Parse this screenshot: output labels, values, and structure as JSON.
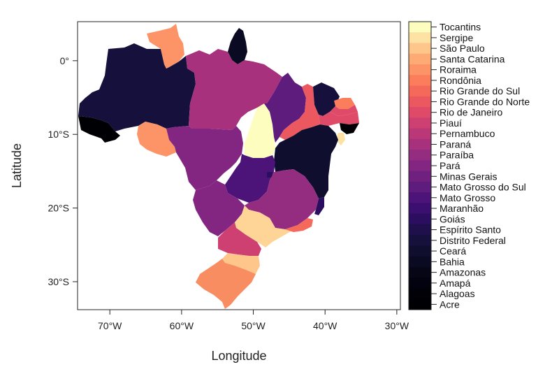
{
  "chart_data": {
    "type": "choropleth",
    "xlabel": "Longitude",
    "ylabel": "Latitude",
    "x_ticks": [
      "70°W",
      "60°W",
      "50°W",
      "40°W",
      "30°W"
    ],
    "x_tick_values": [
      -70,
      -60,
      -50,
      -40,
      -30
    ],
    "y_ticks": [
      "0°",
      "10°S",
      "20°S",
      "30°S"
    ],
    "y_tick_values": [
      0,
      -10,
      -20,
      -30
    ],
    "xlim": [
      -74.5,
      -29.5
    ],
    "ylim": [
      -33.8,
      5.3
    ],
    "legend": {
      "placement": "right",
      "palette": "magma",
      "entries": [
        "Tocantins",
        "Sergipe",
        "São Paulo",
        "Santa Catarina",
        "Roraima",
        "Rondônia",
        "Rio Grande do Sul",
        "Rio Grande do Norte",
        "Rio de Janeiro",
        "Piauí",
        "Pernambuco",
        "Paraná",
        "Paraíba",
        "Pará",
        "Minas Gerais",
        "Mato Grosso do Sul",
        "Mato Grosso",
        "Maranhão",
        "Goiás",
        "Espírito Santo",
        "Distrito Federal",
        "Ceará",
        "Bahia",
        "Amazonas",
        "Amapá",
        "Alagoas",
        "Acre"
      ],
      "colors": [
        "#fcfdbf",
        "#fde2a3",
        "#fec68a",
        "#feaa74",
        "#fd9467",
        "#fb7d5b",
        "#f5695b",
        "#ec5860",
        "#df4a68",
        "#cd4071",
        "#ba3878",
        "#a7317d",
        "#942c80",
        "#822681",
        "#70207f",
        "#5e1c7d",
        "#4c1379",
        "#3a0f6f",
        "#2b0e5f",
        "#1f104c",
        "#15103c",
        "#0f0e2e",
        "#0a0a22",
        "#060617",
        "#03030f",
        "#010107",
        "#000004"
      ]
    },
    "states": [
      {
        "name": "Acre",
        "color": "#000004"
      },
      {
        "name": "Amazonas",
        "color": "#15103c"
      },
      {
        "name": "Roraima",
        "color": "#fd9467"
      },
      {
        "name": "Amapá",
        "color": "#0a0a22"
      },
      {
        "name": "Pará",
        "color": "#a7317d"
      },
      {
        "name": "Rondônia",
        "color": "#fd9467"
      },
      {
        "name": "Mato Grosso",
        "color": "#822681"
      },
      {
        "name": "Tocantins",
        "color": "#fcfdbf"
      },
      {
        "name": "Maranhão",
        "color": "#5e1c7d"
      },
      {
        "name": "Piauí",
        "color": "#ec5860"
      },
      {
        "name": "Ceará",
        "color": "#15103c"
      },
      {
        "name": "Rio Grande do Norte",
        "color": "#fb7d5b"
      },
      {
        "name": "Paraíba",
        "color": "#df4a68"
      },
      {
        "name": "Pernambuco",
        "color": "#df4a68"
      },
      {
        "name": "Alagoas",
        "color": "#000004"
      },
      {
        "name": "Sergipe",
        "color": "#fde2a3"
      },
      {
        "name": "Bahia",
        "color": "#0f0e2e"
      },
      {
        "name": "Goiás",
        "color": "#4c1379"
      },
      {
        "name": "Distrito Federal",
        "color": "#2b0e5f"
      },
      {
        "name": "Minas Gerais",
        "color": "#942c80"
      },
      {
        "name": "Espírito Santo",
        "color": "#2b0e5f"
      },
      {
        "name": "Mato Grosso do Sul",
        "color": "#822681"
      },
      {
        "name": "São Paulo",
        "color": "#fed597"
      },
      {
        "name": "Rio de Janeiro",
        "color": "#f5695b"
      },
      {
        "name": "Paraná",
        "color": "#cd4071"
      },
      {
        "name": "Santa Catarina",
        "color": "#fec68a"
      },
      {
        "name": "Rio Grande do Sul",
        "color": "#f88d62"
      }
    ]
  }
}
